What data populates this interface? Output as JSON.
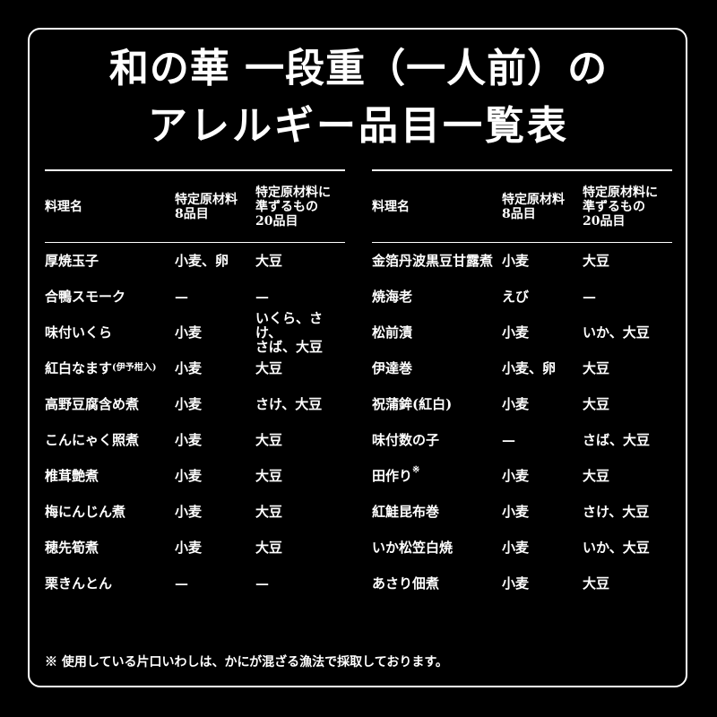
{
  "title": {
    "line1": "和の華 一段重（一人前）の",
    "line2": "アレルギー品目一覧表"
  },
  "headers": {
    "name": "料理名",
    "specific8": "特定原材料\n8品目",
    "equiv20": "特定原材料に\n準ずるもの\n20品目"
  },
  "left_rows": [
    {
      "name": "厚焼玉子",
      "suffix": "",
      "specific8": "小麦、卵",
      "equiv20": "大豆"
    },
    {
      "name": "合鴨スモーク",
      "suffix": "",
      "specific8": "—",
      "equiv20": "—"
    },
    {
      "name": "味付いくら",
      "suffix": "",
      "specific8": "小麦",
      "equiv20": "いくら、さけ、\nさば、大豆"
    },
    {
      "name": "紅白なます",
      "suffix": "(伊予柑入)",
      "specific8": "小麦",
      "equiv20": "大豆"
    },
    {
      "name": "高野豆腐含め煮",
      "suffix": "",
      "specific8": "小麦",
      "equiv20": "さけ、大豆"
    },
    {
      "name": "こんにゃく照煮",
      "suffix": "",
      "specific8": "小麦",
      "equiv20": "大豆"
    },
    {
      "name": "椎茸艶煮",
      "suffix": "",
      "specific8": "小麦",
      "equiv20": "大豆"
    },
    {
      "name": "梅にんじん煮",
      "suffix": "",
      "specific8": "小麦",
      "equiv20": "大豆"
    },
    {
      "name": "穂先筍煮",
      "suffix": "",
      "specific8": "小麦",
      "equiv20": "大豆"
    },
    {
      "name": "栗きんとん",
      "suffix": "",
      "specific8": "—",
      "equiv20": "—"
    }
  ],
  "right_rows": [
    {
      "name": "金箔丹波黒豆甘露煮",
      "mark": "",
      "specific8": "小麦",
      "equiv20": "大豆"
    },
    {
      "name": "焼海老",
      "mark": "",
      "specific8": "えび",
      "equiv20": "—"
    },
    {
      "name": "松前漬",
      "mark": "",
      "specific8": "小麦",
      "equiv20": "いか、大豆"
    },
    {
      "name": "伊達巻",
      "mark": "",
      "specific8": "小麦、卵",
      "equiv20": "大豆"
    },
    {
      "name": "祝蒲鉾(紅白)",
      "mark": "",
      "specific8": "小麦",
      "equiv20": "大豆"
    },
    {
      "name": "味付数の子",
      "mark": "",
      "specific8": "—",
      "equiv20": "さば、大豆"
    },
    {
      "name": "田作り",
      "mark": "※",
      "specific8": "小麦",
      "equiv20": "大豆"
    },
    {
      "name": "紅鮭昆布巻",
      "mark": "",
      "specific8": "小麦",
      "equiv20": "さけ、大豆"
    },
    {
      "name": "いか松笠白焼",
      "mark": "",
      "specific8": "小麦",
      "equiv20": "いか、大豆"
    },
    {
      "name": "あさり佃煮",
      "mark": "",
      "specific8": "小麦",
      "equiv20": "大豆"
    }
  ],
  "footnote": "※ 使用している片口いわしは、かにが混ざる漁法で採取しております。"
}
